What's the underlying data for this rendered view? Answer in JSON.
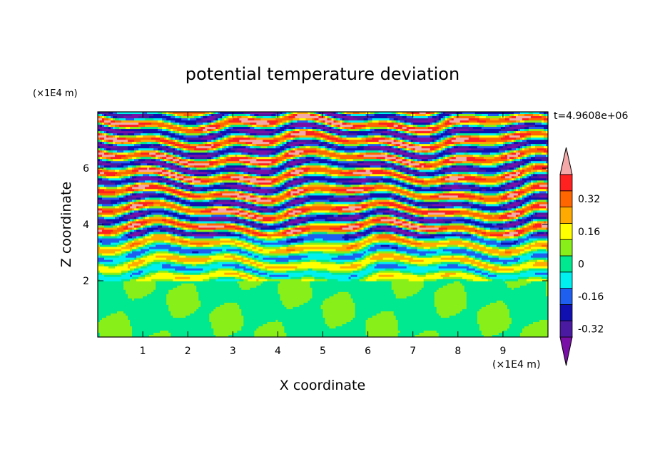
{
  "chart_data": {
    "type": "heatmap",
    "title": "potential temperature deviation",
    "xlabel": "X coordinate",
    "ylabel": "Z coordinate",
    "x_unit": "(×1E4 m)",
    "z_unit": "(×1E4 m)",
    "time_label": "t=4.9608e+06",
    "xlim": [
      0,
      10
    ],
    "ylim": [
      0,
      8
    ],
    "x_ticks": [
      "1",
      "2",
      "3",
      "4",
      "5",
      "6",
      "7",
      "8",
      "9"
    ],
    "y_ticks": [
      "2",
      "4",
      "6"
    ],
    "colorbar": {
      "tick_labels": [
        "0.32",
        "0.16",
        "0",
        "-0.16",
        "-0.32"
      ],
      "tick_values": [
        0.32,
        0.16,
        0,
        -0.16,
        -0.32
      ],
      "levels": [
        -0.4,
        -0.32,
        -0.24,
        -0.16,
        -0.08,
        0,
        0.08,
        0.16,
        0.24,
        0.32,
        0.4
      ],
      "colors": [
        "#7a0fa8",
        "#4a1aa0",
        "#1010b0",
        "#1f5ff0",
        "#00f0f0",
        "#00e890",
        "#88f018",
        "#ffff00",
        "#ffaa00",
        "#ff6600",
        "#ff2020",
        "#f4a8a8"
      ]
    },
    "regions": [
      {
        "z_range": [
          0,
          2
        ],
        "description_values": [
          -0.04,
          0.04
        ],
        "dominant_level": "0"
      },
      {
        "z_range": [
          2,
          8
        ],
        "description_values": [
          -0.4,
          0.4
        ],
        "dominant_level": "layered ±0.32"
      }
    ]
  }
}
